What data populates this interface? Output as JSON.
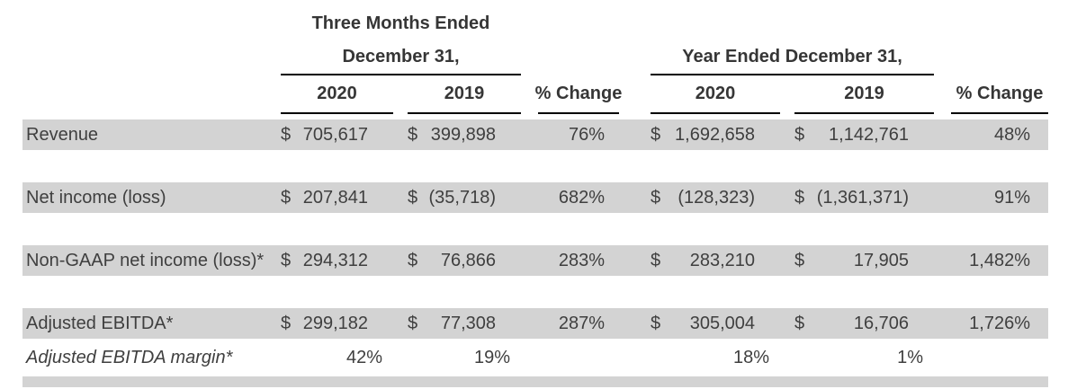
{
  "table": {
    "groups": [
      {
        "line1": "Three Months Ended",
        "line2": "December 31,"
      },
      {
        "line1": "Year Ended December 31,"
      }
    ],
    "column_headers": [
      "2020",
      "2019",
      "% Change",
      "2020",
      "2019",
      "% Change"
    ],
    "currency_symbol": "$",
    "rows": [
      {
        "label": "Revenue",
        "style": "currency",
        "striped": true,
        "gap_after": true,
        "values": [
          "705,617",
          "399,898",
          "76%",
          "1,692,658",
          "1,142,761",
          "48%"
        ]
      },
      {
        "label": "Net income (loss)",
        "style": "currency",
        "striped": true,
        "gap_after": true,
        "values": [
          "207,841",
          "(35,718)",
          "682%",
          "(128,323)",
          "(1,361,371)",
          "91%"
        ]
      },
      {
        "label": "Non-GAAP net income (loss)*",
        "style": "currency",
        "striped": true,
        "gap_after": true,
        "values": [
          "294,312",
          "76,866",
          "283%",
          "283,210",
          "17,905",
          "1,482%"
        ]
      },
      {
        "label": "Adjusted EBITDA*",
        "style": "currency",
        "striped": true,
        "gap_after": false,
        "values": [
          "299,182",
          "77,308",
          "287%",
          "305,004",
          "16,706",
          "1,726%"
        ]
      },
      {
        "label": "Adjusted EBITDA margin*",
        "style": "percent-italic",
        "striped": false,
        "gap_after": false,
        "values": [
          "42%",
          "19%",
          "",
          "18%",
          "1%",
          ""
        ]
      }
    ]
  },
  "colors": {
    "stripe": "#d3d3d3",
    "text": "#3f3f3f",
    "header_text": "#363636",
    "rule": "#000000"
  }
}
